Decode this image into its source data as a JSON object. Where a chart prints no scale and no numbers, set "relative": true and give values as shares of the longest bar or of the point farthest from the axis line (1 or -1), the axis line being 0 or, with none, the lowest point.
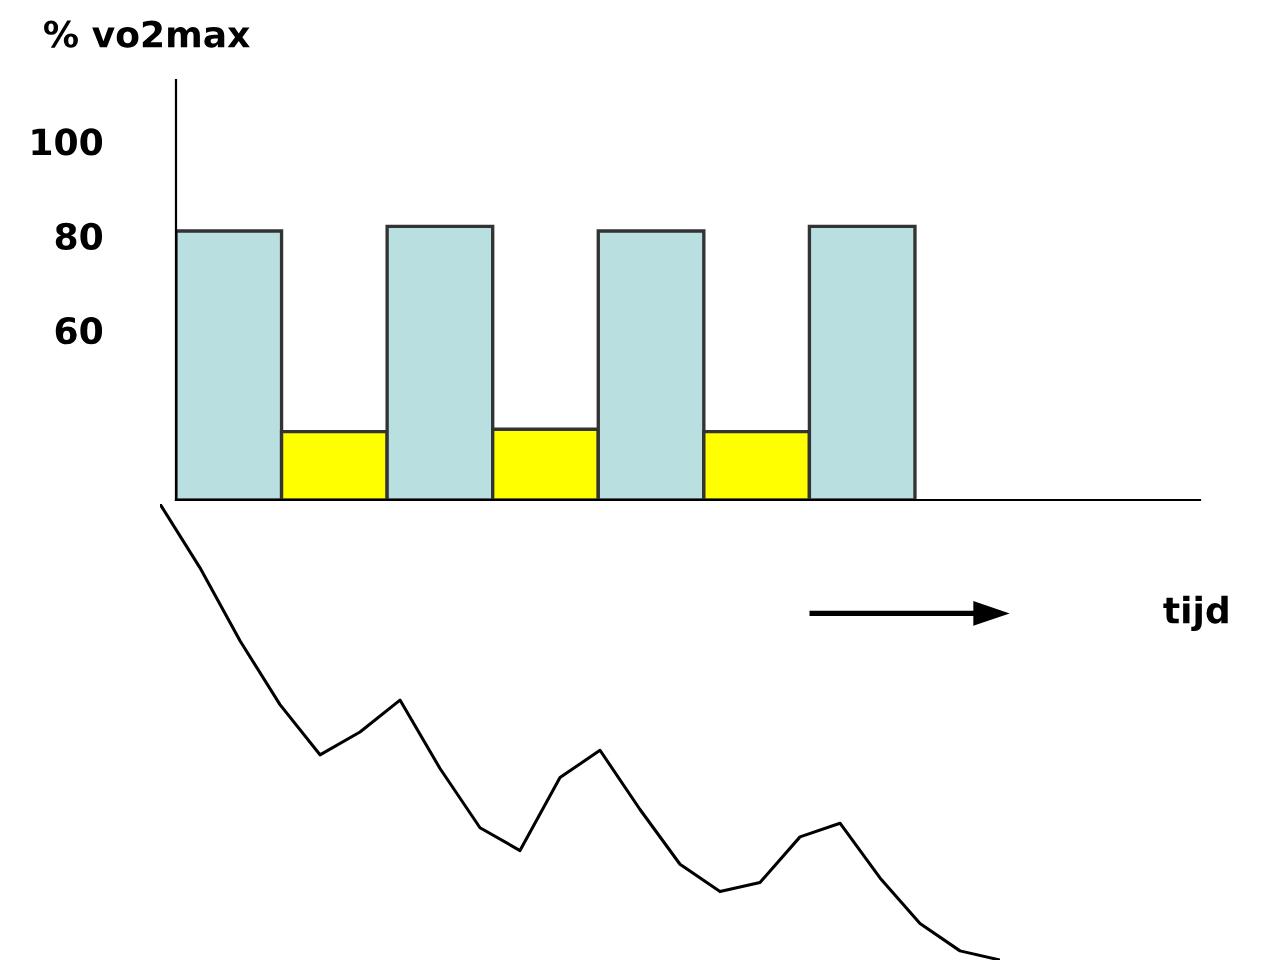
{
  "chart_data": [
    {
      "type": "bar",
      "ylabel": "% vo2max",
      "annotations": [
        "tijd"
      ],
      "categories": [
        null,
        null,
        null,
        null,
        null,
        null,
        null
      ],
      "base": [
        24,
        24,
        24,
        24,
        24,
        24,
        24
      ],
      "values": [
        57,
        14.5,
        58,
        15,
        57,
        14.5,
        58
      ],
      "colors": [
        "#b9dfe0",
        "#ffff00",
        "#b9dfe0",
        "#ffff00",
        "#b9dfe0",
        "#ffff00",
        "#b9dfe0"
      ],
      "ylim": [
        24,
        113
      ],
      "yticks": [
        60,
        80,
        100
      ]
    },
    {
      "type": "line",
      "relative": true,
      "categories": [
        null,
        null,
        null,
        null,
        null,
        null,
        null,
        null,
        null,
        null,
        null,
        null,
        null,
        null,
        null,
        null,
        null,
        null,
        null,
        null,
        null,
        null
      ],
      "series": [
        {
          "color": "#000000",
          "values": [
            1,
            0.86,
            0.7,
            0.56,
            0.45,
            0.5,
            0.57,
            0.42,
            0.29,
            0.24,
            0.4,
            0.46,
            0.33,
            0.21,
            0.15,
            0.17,
            0.27,
            0.3,
            0.18,
            0.08,
            0.02,
            0
          ]
        }
      ]
    }
  ]
}
